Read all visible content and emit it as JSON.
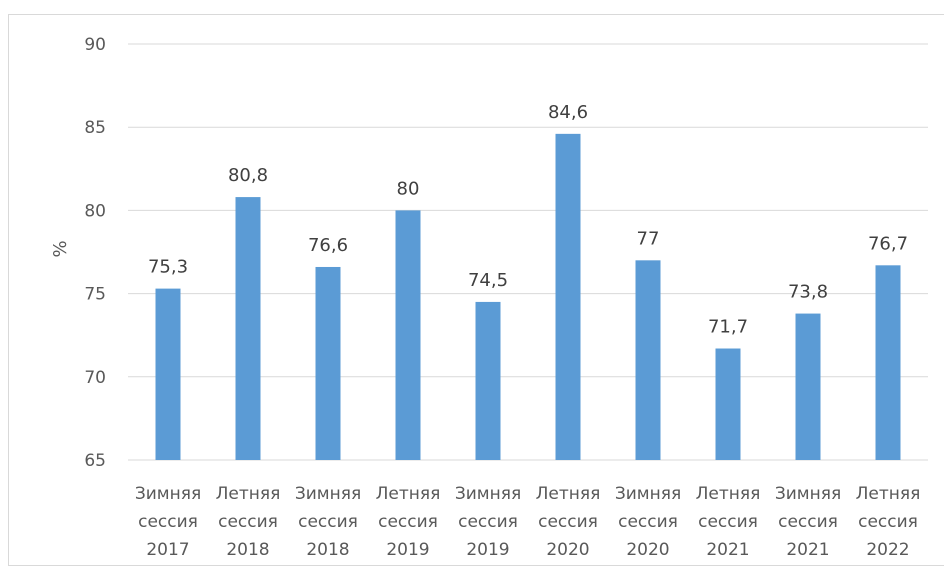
{
  "chart_data": {
    "type": "bar",
    "title": "",
    "xlabel": "",
    "ylabel": "%",
    "ylim": [
      65,
      90
    ],
    "yticks": [
      65,
      70,
      75,
      80,
      85,
      90
    ],
    "grid": true,
    "legend": "none",
    "bar_color": "#5b9bd5",
    "categories": [
      [
        "Зимняя",
        "сессия",
        "2017"
      ],
      [
        "Летняя",
        "сессия",
        "2018"
      ],
      [
        "Зимняя",
        "сессия",
        "2018"
      ],
      [
        "Летняя",
        "сессия",
        "2019"
      ],
      [
        "Зимняя",
        "сессия",
        "2019"
      ],
      [
        "Летняя",
        "сессия",
        "2020"
      ],
      [
        "Зимняя",
        "сессия",
        "2020"
      ],
      [
        "Летняя",
        "сессия",
        "2021"
      ],
      [
        "Зимняя",
        "сессия",
        "2021"
      ],
      [
        "Летняя",
        "сессия",
        "2022"
      ]
    ],
    "values": [
      75.3,
      80.8,
      76.6,
      80,
      74.5,
      84.6,
      77,
      71.7,
      73.8,
      76.7
    ],
    "data_labels": [
      "75,3",
      "80,8",
      "76,6",
      "80",
      "74,5",
      "84,6",
      "77",
      "71,7",
      "73,8",
      "76,7"
    ]
  }
}
